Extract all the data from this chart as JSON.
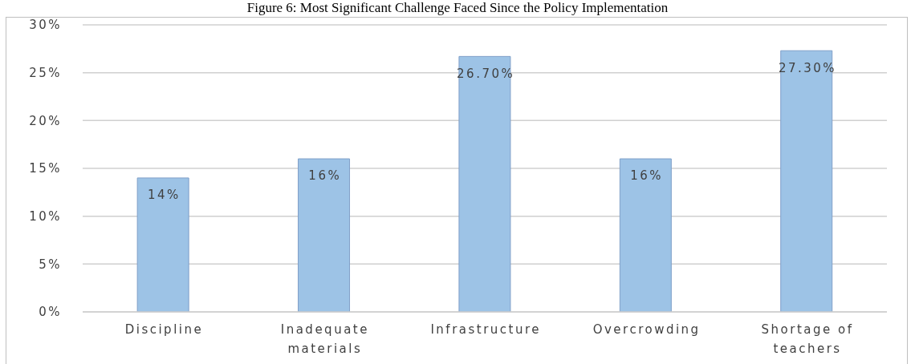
{
  "chart_data": {
    "type": "bar",
    "title": "Figure 6: Most Significant Challenge Faced Since the Policy Implementation",
    "categories": [
      "Discipline",
      "Inadequate materials",
      "Infrastructure",
      "Overcrowding",
      "Shortage of teachers"
    ],
    "values": [
      14,
      16,
      26.7,
      16,
      27.3
    ],
    "color": "#9dc3e6",
    "value_labels": [
      "14%",
      "16%",
      "26.70%",
      "16%",
      "27.30%"
    ],
    "ylim": [
      0,
      30
    ],
    "yticks": [
      {
        "value": 0,
        "label": "0%"
      },
      {
        "value": 5,
        "label": "5%"
      },
      {
        "value": 10,
        "label": "10%"
      },
      {
        "value": 15,
        "label": "15%"
      },
      {
        "value": 20,
        "label": "20%"
      },
      {
        "value": 25,
        "label": "25%"
      },
      {
        "value": 30,
        "label": "30%"
      }
    ],
    "grid": "y"
  }
}
